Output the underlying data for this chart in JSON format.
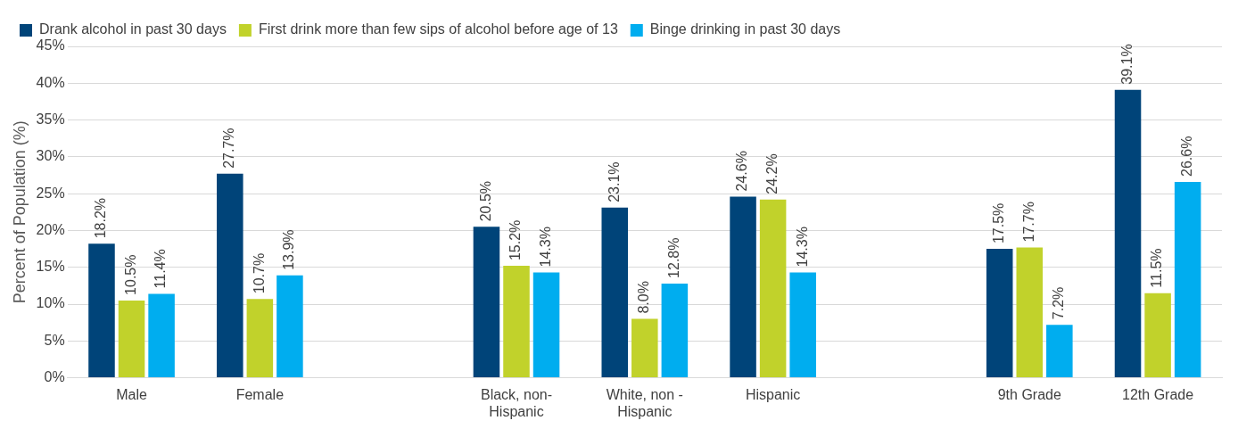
{
  "chart_data": {
    "type": "bar",
    "ylabel": "Percent of Population (%)",
    "categories": [
      "Male",
      "Female",
      null,
      "Black, non-Hispanic",
      "White, non - Hispanic",
      "Hispanic",
      null,
      "9th Grade",
      "12th Grade"
    ],
    "series": [
      {
        "name": "Drank alcohol in past 30 days",
        "color": "#004479",
        "values": [
          18.2,
          27.7,
          null,
          20.5,
          23.1,
          24.6,
          null,
          17.5,
          39.1
        ],
        "value_labels": [
          "18.2%",
          "27.7%",
          null,
          "20.5%",
          "23.1%",
          "24.6%",
          null,
          "17.5%",
          "39.1%"
        ]
      },
      {
        "name": "First drink more than few sips of alcohol before age of 13",
        "color": "#c1d22b",
        "values": [
          10.5,
          10.7,
          null,
          15.2,
          8.0,
          24.2,
          null,
          17.7,
          11.5
        ],
        "value_labels": [
          "10.5%",
          "10.7%",
          null,
          "15.2%",
          "8.0%",
          "24.2%",
          null,
          "17.7%",
          "11.5%"
        ]
      },
      {
        "name": "Binge drinking in past 30 days",
        "color": "#00adef",
        "values": [
          11.4,
          13.9,
          null,
          14.3,
          12.8,
          14.3,
          null,
          7.2,
          26.6
        ],
        "value_labels": [
          "11.4%",
          "13.9%",
          null,
          "14.3%",
          "12.8%",
          "14.3%",
          null,
          "7.2%",
          "26.6%"
        ]
      }
    ],
    "ylim": [
      0,
      45
    ],
    "yticks": [
      {
        "value": 0,
        "label": "0%"
      },
      {
        "value": 5,
        "label": "5%"
      },
      {
        "value": 10,
        "label": "10%"
      },
      {
        "value": 15,
        "label": "15%"
      },
      {
        "value": 20,
        "label": "20%"
      },
      {
        "value": 25,
        "label": "25%"
      },
      {
        "value": 30,
        "label": "30%"
      },
      {
        "value": 35,
        "label": "35%"
      },
      {
        "value": 40,
        "label": "40%"
      },
      {
        "value": 45,
        "label": "45%"
      }
    ],
    "grid": "y",
    "legend": "top left"
  }
}
